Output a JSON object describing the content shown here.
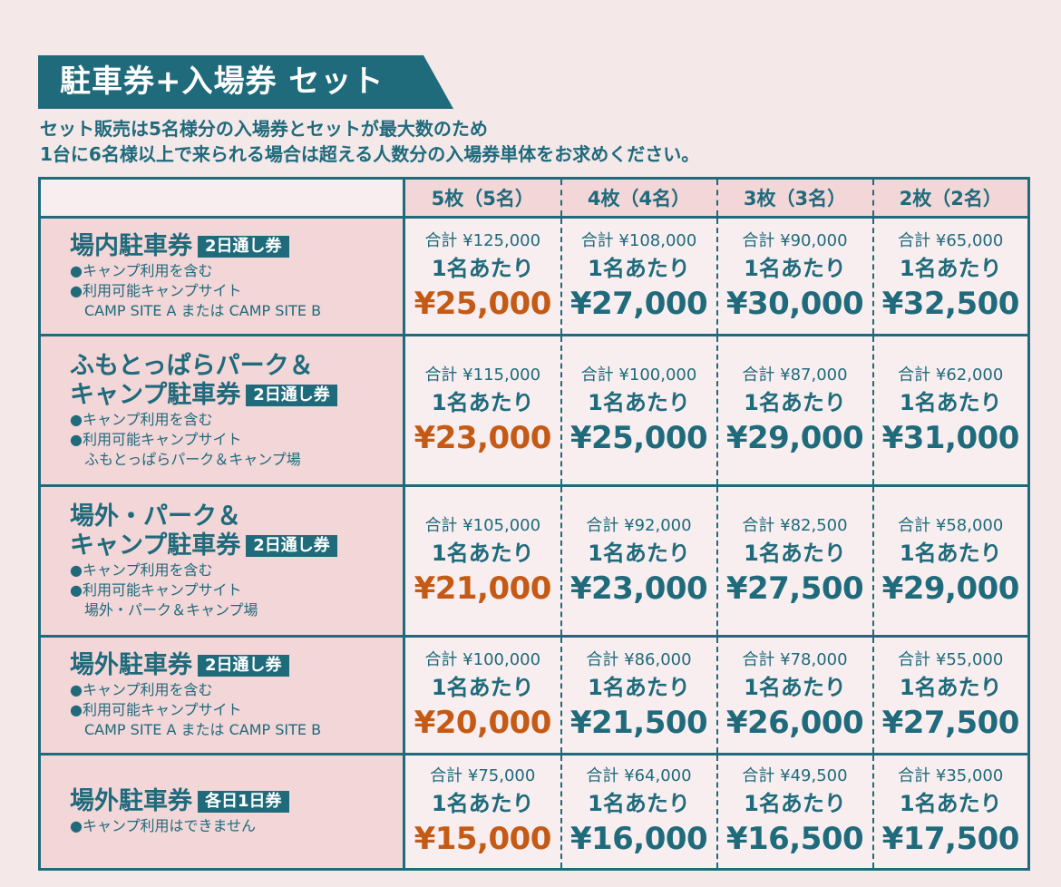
{
  "banner": {
    "title": "駐車券+入場券 セット"
  },
  "intro": {
    "line1": "セット販売は5名様分の入場券とセットが最大数のため",
    "line2": "1台に6名様以上で来られる場合は超える人数分の入場券単体をお求めください。"
  },
  "columns": [
    "5枚（5名）",
    "4枚（4名）",
    "3枚（3名）",
    "2枚（2名）"
  ],
  "per_label": "1名あたり",
  "colors": {
    "primary": "#1f6a7b",
    "highlight": "#c45a15",
    "rowhead_bg": "#f2d6d8",
    "cell_bg": "#f8eeef"
  },
  "rows": [
    {
      "title1": "場内駐車券",
      "title2": "",
      "tag": "2日通し券",
      "notes": [
        "●キャンプ利用を含む",
        "●利用可能キャンプサイト",
        "CAMP SITE A または CAMP SITE B"
      ],
      "prices": [
        {
          "total": "合計 ¥125,000",
          "per": "¥25,000"
        },
        {
          "total": "合計 ¥108,000",
          "per": "¥27,000"
        },
        {
          "total": "合計 ¥90,000",
          "per": "¥30,000"
        },
        {
          "total": "合計 ¥65,000",
          "per": "¥32,500"
        }
      ]
    },
    {
      "title1": "ふもとっぱらパーク＆",
      "title2": "キャンプ駐車券",
      "tag": "2日通し券",
      "notes": [
        "●キャンプ利用を含む",
        "●利用可能キャンプサイト",
        "ふもとっぱらパーク＆キャンプ場"
      ],
      "prices": [
        {
          "total": "合計 ¥115,000",
          "per": "¥23,000"
        },
        {
          "total": "合計 ¥100,000",
          "per": "¥25,000"
        },
        {
          "total": "合計 ¥87,000",
          "per": "¥29,000"
        },
        {
          "total": "合計 ¥62,000",
          "per": "¥31,000"
        }
      ]
    },
    {
      "title1": "場外・パーク＆",
      "title2": "キャンプ駐車券",
      "tag": "2日通し券",
      "notes": [
        "●キャンプ利用を含む",
        "●利用可能キャンプサイト",
        "場外・パーク＆キャンプ場"
      ],
      "prices": [
        {
          "total": "合計 ¥105,000",
          "per": "¥21,000"
        },
        {
          "total": "合計 ¥92,000",
          "per": "¥23,000"
        },
        {
          "total": "合計 ¥82,500",
          "per": "¥27,500"
        },
        {
          "total": "合計 ¥58,000",
          "per": "¥29,000"
        }
      ]
    },
    {
      "title1": "場外駐車券",
      "title2": "",
      "tag": "2日通し券",
      "notes": [
        "●キャンプ利用を含む",
        "●利用可能キャンプサイト",
        "CAMP SITE A または CAMP SITE B"
      ],
      "prices": [
        {
          "total": "合計 ¥100,000",
          "per": "¥20,000"
        },
        {
          "total": "合計 ¥86,000",
          "per": "¥21,500"
        },
        {
          "total": "合計 ¥78,000",
          "per": "¥26,000"
        },
        {
          "total": "合計 ¥55,000",
          "per": "¥27,500"
        }
      ]
    },
    {
      "title1": "場外駐車券",
      "title2": "",
      "tag": "各日1日券",
      "notes": [
        "●キャンプ利用はできません"
      ],
      "prices": [
        {
          "total": "合計 ¥75,000",
          "per": "¥15,000"
        },
        {
          "total": "合計 ¥64,000",
          "per": "¥16,000"
        },
        {
          "total": "合計 ¥49,500",
          "per": "¥16,500"
        },
        {
          "total": "合計 ¥35,000",
          "per": "¥17,500"
        }
      ]
    }
  ]
}
